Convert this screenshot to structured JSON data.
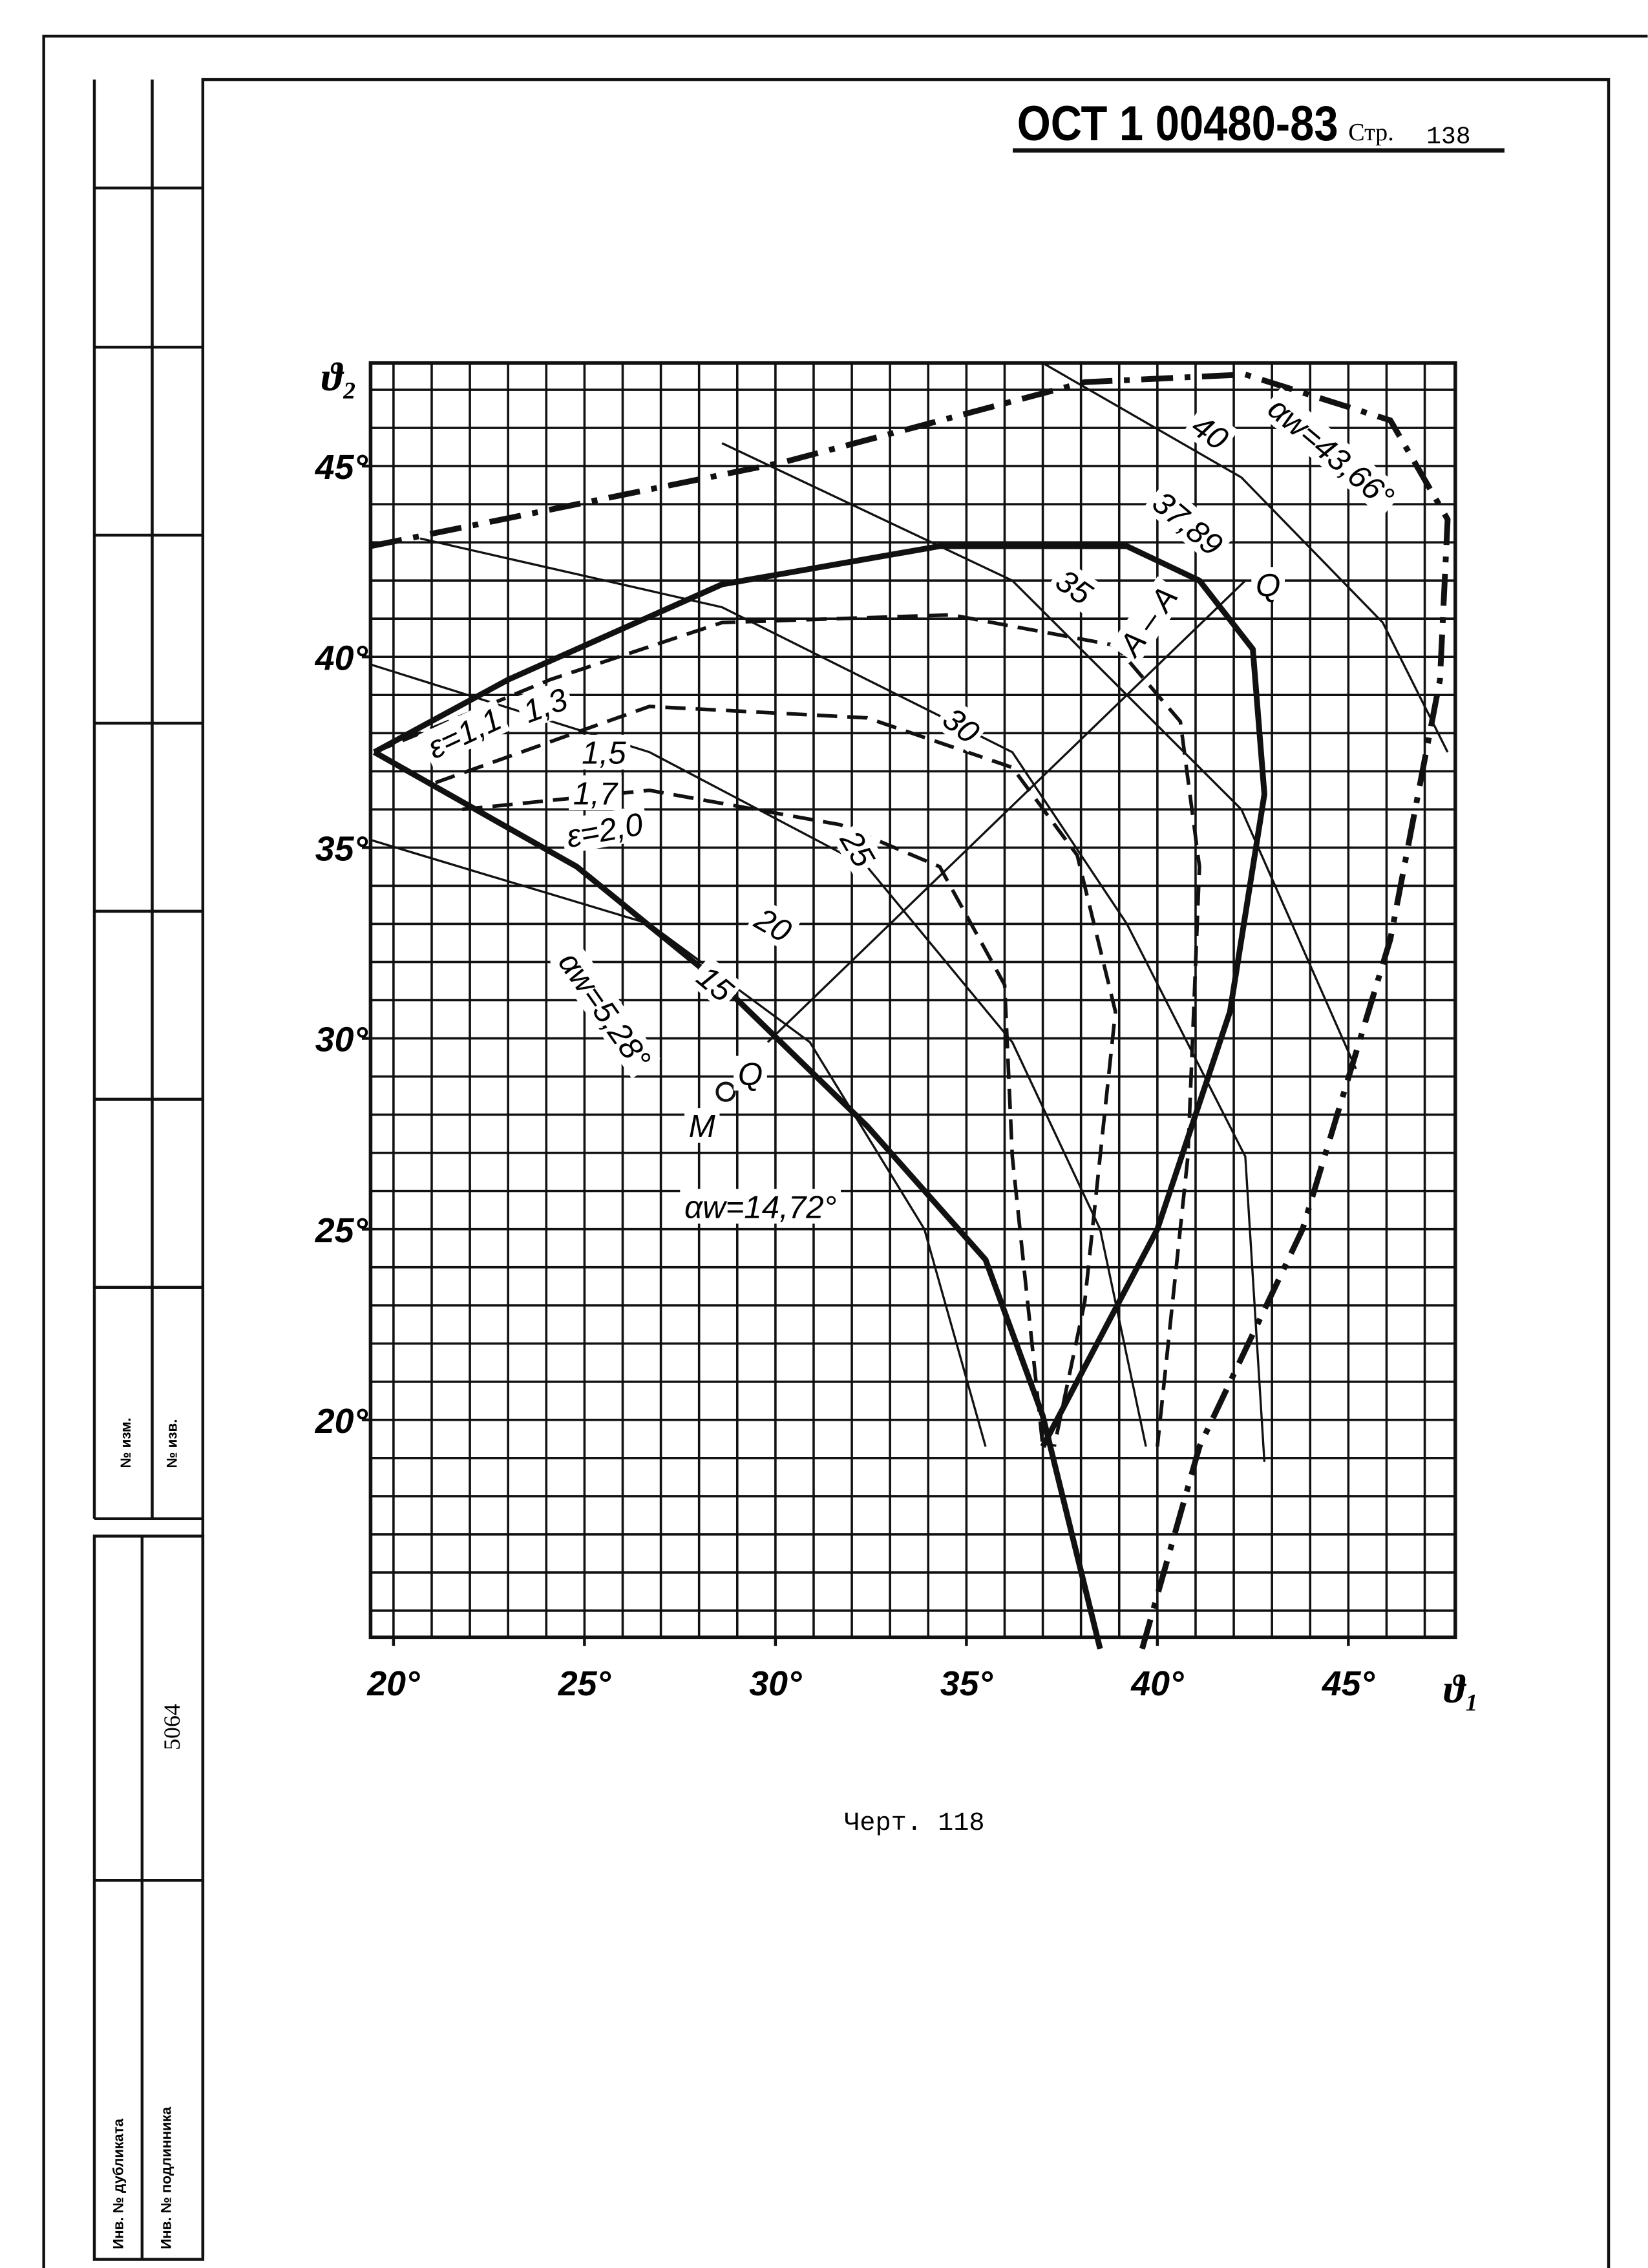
{
  "header": {
    "code": "ОСТ 1 00480-83",
    "page_label": "Стр.",
    "page_number": "138"
  },
  "stamp": {
    "inv_duplicate": "Инв. № дубликата",
    "inv_original": "Инв. № подлинника",
    "change_no": "№ изм.",
    "notice_no": "№ изв.",
    "number": "5064"
  },
  "chart_data": {
    "type": "line",
    "x_label": "ϑ₁",
    "y_label": "ϑ₂",
    "xlim": [
      19.4,
      47.8
    ],
    "ylim": [
      14.3,
      47.7
    ],
    "xticks": [
      {
        "value": 20,
        "label": "20°"
      },
      {
        "value": 25,
        "label": "25°"
      },
      {
        "value": 30,
        "label": "30°"
      },
      {
        "value": 35,
        "label": "35°"
      },
      {
        "value": 40,
        "label": "40°"
      },
      {
        "value": 45,
        "label": "45°"
      }
    ],
    "yticks": [
      {
        "value": 20,
        "label": "20°"
      },
      {
        "value": 25,
        "label": "25°"
      },
      {
        "value": 30,
        "label": "30°"
      },
      {
        "value": 35,
        "label": "35°"
      },
      {
        "value": 40,
        "label": "40°"
      },
      {
        "value": 45,
        "label": "45°"
      }
    ],
    "grid": true,
    "xgrid": [
      20,
      21,
      22,
      23,
      24,
      25,
      26,
      27,
      28,
      29,
      30,
      31,
      32,
      33,
      34,
      35,
      36,
      37,
      38,
      39,
      40,
      41,
      42,
      43,
      44,
      45,
      46,
      47
    ],
    "ygrid": [
      15,
      16,
      17,
      18,
      19,
      20,
      21,
      22,
      23,
      24,
      25,
      26,
      27,
      28,
      29,
      30,
      31,
      32,
      33,
      34,
      35,
      36,
      37,
      38,
      39,
      40,
      41,
      42,
      43,
      44,
      45,
      46,
      47
    ],
    "color": "#111111",
    "series": [
      {
        "style": "dashdot",
        "width": 4,
        "x": [
          19.4,
          30.2,
          38.1,
          42.3,
          46.1,
          47.6,
          47.4,
          46.1,
          43.8,
          41.1,
          39.6
        ],
        "y": [
          42.9,
          45.1,
          47.2,
          47.4,
          46.2,
          43.6,
          39.4,
          32.6,
          25,
          19.3,
          14
        ]
      },
      {
        "style": "solid",
        "width": 4,
        "x": [
          19.5,
          23,
          28.6,
          34.3,
          39.2,
          41.1,
          42.5,
          42.8,
          41.9,
          40,
          37
        ],
        "y": [
          37.5,
          39.4,
          41.9,
          42.9,
          42.9,
          42,
          40.2,
          36.4,
          30.7,
          25,
          19.3
        ]
      },
      {
        "style": "solid",
        "width": 4,
        "x": [
          19.5,
          24.8,
          28.6,
          32.4,
          35.5,
          37,
          38.5
        ],
        "y": [
          37.5,
          34.5,
          31.4,
          27.7,
          24.2,
          20.1,
          14
        ]
      },
      {
        "style": "dashed",
        "width": 2.5,
        "x": [
          19.5,
          24.1,
          28.6,
          34.6,
          38.9,
          40.6,
          41.1,
          40.8,
          40
        ],
        "y": [
          37.5,
          39.4,
          40.9,
          41.1,
          40.3,
          38.3,
          34.5,
          26.9,
          19.3
        ]
      },
      {
        "style": "dashed",
        "width": 2.5,
        "x": [
          21.1,
          26.7,
          32.4,
          36.2,
          37.9,
          38.9,
          38.1,
          37.3
        ],
        "y": [
          36.7,
          38.7,
          38.4,
          37.1,
          34.8,
          30.7,
          23.1,
          19.3
        ]
      },
      {
        "style": "dashed",
        "width": 2.5,
        "x": [
          21.8,
          26.7,
          31.7,
          34.3,
          36,
          36.2,
          37
        ],
        "y": [
          36,
          36.5,
          35.6,
          34.5,
          31.4,
          26.9,
          19.3
        ]
      },
      {
        "style": "solid",
        "width": 1.5,
        "x": [
          28.6,
          36.2,
          42.2,
          45.2
        ],
        "y": [
          45.6,
          42,
          36,
          29.2
        ]
      },
      {
        "style": "solid",
        "width": 1.5,
        "x": [
          37,
          42.2,
          45.9,
          47.6
        ],
        "y": [
          47.7,
          44.7,
          40.9,
          37.5
        ]
      },
      {
        "style": "solid",
        "width": 1.5,
        "x": [
          20.7,
          28.6,
          36.2,
          39.2,
          42.3,
          42.8
        ],
        "y": [
          43.1,
          41.3,
          37.5,
          33,
          26.9,
          18.9
        ]
      },
      {
        "style": "solid",
        "width": 1.5,
        "x": [
          19.4,
          26.7,
          32.4,
          36.2,
          38.5,
          39.7
        ],
        "y": [
          39.8,
          37.5,
          34.5,
          29.9,
          25,
          19.3
        ]
      },
      {
        "style": "solid",
        "width": 1.5,
        "x": [
          19.4,
          26.7,
          30.9,
          33.9,
          35.5
        ],
        "y": [
          35.2,
          33,
          29.9,
          25,
          19.3
        ]
      },
      {
        "style": "solid",
        "width": 1.5,
        "x": [
          29.8,
          42.3
        ],
        "y": [
          29.9,
          42
        ]
      }
    ],
    "points": [
      {
        "x": 28.7,
        "y": 28.6
      }
    ],
    "annotations": [
      "ε=1,1",
      "1,3",
      "1,5",
      "1,7",
      "ε=2,0",
      "20",
      "25",
      "30",
      "35",
      "40",
      "37,89",
      "15",
      "αw=43,66°",
      "αw=5,28°",
      "αw=14,72°",
      "A – A",
      "Q",
      "Q",
      "M"
    ]
  },
  "caption": "Черт. 118"
}
